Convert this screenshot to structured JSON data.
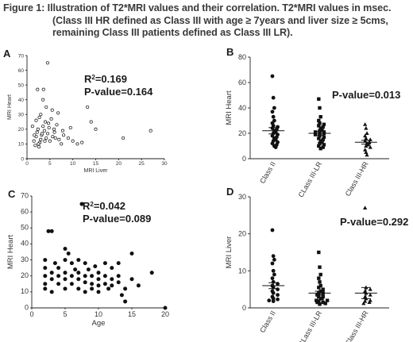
{
  "caption": {
    "line1": "Figure 1: Illustration of T2*MRI values and their correlation. T2*MRI values in msec.",
    "line2": "(Class III HR defined as Class III with age ≥ 7years and liver size ≥ 5cms,",
    "line3": "remaining Class III patients defined as Class III LR)."
  },
  "chart_data": [
    {
      "panel": "A",
      "type": "scatter",
      "xlabel": "MRI Liver",
      "ylabel": "MRI Heart",
      "xlim": [
        0,
        30
      ],
      "ylim": [
        0,
        70
      ],
      "xticks": [
        0,
        5,
        10,
        15,
        20,
        25,
        30
      ],
      "yticks": [
        0,
        10,
        20,
        30,
        40,
        50,
        60,
        70
      ],
      "annotation_r2": "R²=0.169",
      "annotation_p": "P-value=0.164",
      "marker": "open-circle",
      "points": [
        [
          1.5,
          12
        ],
        [
          1.8,
          9
        ],
        [
          2.0,
          15
        ],
        [
          2.2,
          18
        ],
        [
          2.4,
          20
        ],
        [
          2.6,
          8
        ],
        [
          2.8,
          11
        ],
        [
          3.0,
          13
        ],
        [
          3.2,
          16
        ],
        [
          3.5,
          22
        ],
        [
          3.8,
          19
        ],
        [
          4.0,
          25
        ],
        [
          4.2,
          14
        ],
        [
          4.5,
          17
        ],
        [
          4.8,
          21
        ],
        [
          5.0,
          12
        ],
        [
          5.3,
          27
        ],
        [
          5.6,
          15
        ],
        [
          6.0,
          18
        ],
        [
          6.5,
          23
        ],
        [
          7.0,
          13
        ],
        [
          7.5,
          10
        ],
        [
          8.0,
          16
        ],
        [
          9.0,
          14
        ],
        [
          10.0,
          12
        ],
        [
          11.0,
          10
        ],
        [
          12.0,
          11
        ],
        [
          14.0,
          25
        ],
        [
          15.0,
          20
        ],
        [
          21.0,
          14
        ],
        [
          27.0,
          19
        ],
        [
          2.3,
          47
        ],
        [
          3.6,
          47
        ],
        [
          4.5,
          65
        ],
        [
          3.5,
          40
        ],
        [
          4.2,
          35
        ],
        [
          3.0,
          30
        ],
        [
          6.8,
          31
        ],
        [
          2.7,
          28
        ],
        [
          5.5,
          33
        ],
        [
          1.2,
          22
        ],
        [
          2.0,
          26
        ],
        [
          4.7,
          24
        ],
        [
          5.9,
          20
        ],
        [
          6.2,
          14
        ],
        [
          7.8,
          19
        ],
        [
          9.5,
          21
        ],
        [
          13.2,
          35
        ],
        [
          3.3,
          17
        ],
        [
          2.5,
          10
        ],
        [
          1.6,
          16
        ],
        [
          3.9,
          12
        ]
      ]
    },
    {
      "panel": "B",
      "type": "scatter",
      "ylabel": "MRI Heart",
      "ylim": [
        0,
        80
      ],
      "yticks": [
        0,
        20,
        40,
        60,
        80
      ],
      "categories": [
        "Class II",
        "CLass III-LR",
        "Class III-HR"
      ],
      "annotation_p": "P-value=0.013",
      "groups": [
        {
          "name": "Class II",
          "marker": "circle",
          "mean": 22,
          "sem": 2.5,
          "values": [
            65,
            48,
            40,
            37,
            33,
            30,
            28,
            26,
            25,
            24,
            23,
            22,
            21,
            20,
            19,
            18,
            17,
            16,
            15,
            14,
            13,
            12,
            11,
            10,
            9
          ]
        },
        {
          "name": "CLass III-LR",
          "marker": "square",
          "mean": 20,
          "sem": 1.5,
          "values": [
            47,
            40,
            33,
            30,
            28,
            27,
            26,
            25,
            24,
            23,
            22,
            21,
            21,
            20,
            20,
            19,
            18,
            17,
            16,
            15,
            14,
            13,
            12,
            11,
            10,
            9,
            8
          ]
        },
        {
          "name": "Class III-HR",
          "marker": "triangle",
          "mean": 13,
          "sem": 1.5,
          "values": [
            27,
            24,
            20,
            18,
            16,
            15,
            14,
            13,
            12,
            11,
            10,
            9,
            7,
            5,
            3
          ]
        }
      ]
    },
    {
      "panel": "C",
      "type": "scatter",
      "xlabel": "Age",
      "ylabel": "MRI Heart",
      "xlim": [
        0,
        20
      ],
      "ylim": [
        0,
        70
      ],
      "xticks": [
        0,
        5,
        10,
        15,
        20
      ],
      "yticks": [
        0,
        10,
        20,
        30,
        40,
        50,
        60,
        70
      ],
      "annotation_r2": "R²=0.042",
      "annotation_p": "P-value=0.089",
      "marker": "filled-circle",
      "points": [
        [
          2,
          30
        ],
        [
          2,
          25
        ],
        [
          2,
          20
        ],
        [
          2,
          15
        ],
        [
          2,
          12
        ],
        [
          2.5,
          48
        ],
        [
          3,
          48
        ],
        [
          3,
          22
        ],
        [
          3,
          18
        ],
        [
          3,
          10
        ],
        [
          3.5,
          28
        ],
        [
          4,
          20
        ],
        [
          4,
          15
        ],
        [
          4,
          25
        ],
        [
          5,
          37
        ],
        [
          5,
          30
        ],
        [
          5,
          22
        ],
        [
          5,
          18
        ],
        [
          5,
          12
        ],
        [
          5.5,
          34
        ],
        [
          6,
          28
        ],
        [
          6,
          20
        ],
        [
          6,
          15
        ],
        [
          6.5,
          24
        ],
        [
          7,
          30
        ],
        [
          7,
          22
        ],
        [
          7,
          18
        ],
        [
          7,
          12
        ],
        [
          7.5,
          65
        ],
        [
          8,
          28
        ],
        [
          8,
          20
        ],
        [
          8,
          16
        ],
        [
          8,
          10
        ],
        [
          8.5,
          24
        ],
        [
          9,
          20
        ],
        [
          9,
          15
        ],
        [
          9,
          12
        ],
        [
          9.5,
          26
        ],
        [
          10,
          22
        ],
        [
          10,
          18
        ],
        [
          10,
          14
        ],
        [
          10,
          10
        ],
        [
          11,
          20
        ],
        [
          11,
          15
        ],
        [
          11,
          28
        ],
        [
          11.5,
          12
        ],
        [
          12,
          18
        ],
        [
          12,
          25
        ],
        [
          12,
          14
        ],
        [
          13,
          28
        ],
        [
          13,
          20
        ],
        [
          13,
          16
        ],
        [
          13.5,
          8
        ],
        [
          14,
          12
        ],
        [
          14,
          4
        ],
        [
          15,
          34
        ],
        [
          15,
          18
        ],
        [
          16,
          14
        ],
        [
          18,
          22
        ],
        [
          20,
          0
        ]
      ]
    },
    {
      "panel": "D",
      "type": "scatter",
      "ylabel": "MRI Liver",
      "ylim": [
        0,
        30
      ],
      "yticks": [
        0,
        10,
        20,
        30
      ],
      "categories": [
        "Class II",
        "CLass III-LR",
        "Class III-HR"
      ],
      "annotation_p": "P-value=0.292",
      "groups": [
        {
          "name": "Class II",
          "marker": "circle",
          "mean": 6,
          "sem": 0.8,
          "values": [
            21,
            14,
            13,
            12,
            10,
            9,
            8,
            7,
            6.5,
            6,
            5.5,
            5,
            4.5,
            4,
            3.5,
            3,
            2.5,
            2.3,
            2,
            1.8
          ]
        },
        {
          "name": "CLass III-LR",
          "marker": "square",
          "mean": 4,
          "sem": 0.5,
          "values": [
            15,
            11,
            9,
            8,
            7,
            6,
            5.5,
            5,
            4.5,
            4,
            4,
            3.5,
            3,
            3,
            2.5,
            2.5,
            2,
            2,
            1.8,
            1.5,
            1.5,
            1.2,
            1
          ]
        },
        {
          "name": "Class III-HR",
          "marker": "triangle",
          "mean": 4,
          "sem": 1.5,
          "values": [
            27,
            5.5,
            5,
            4.5,
            4,
            3.5,
            3,
            2.5,
            2,
            1.8,
            1.5,
            1.2
          ]
        }
      ]
    }
  ]
}
